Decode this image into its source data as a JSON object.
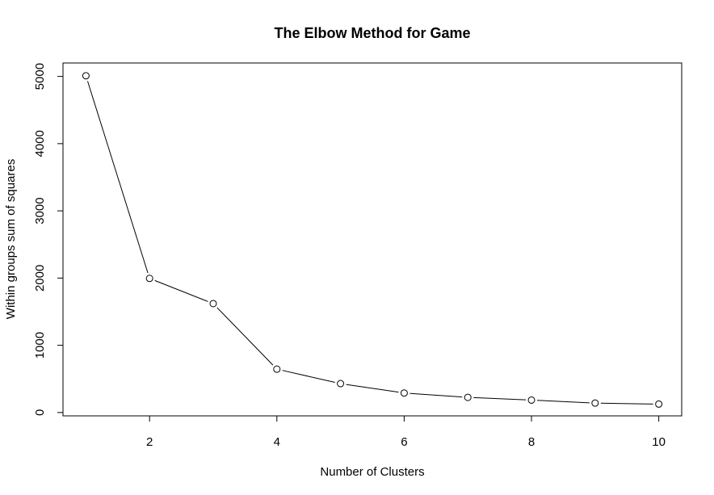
{
  "chart_data": {
    "type": "line",
    "title": "The Elbow Method for Game",
    "xlabel": "Number of Clusters",
    "ylabel": "Within groups sum of squares",
    "x": [
      1,
      2,
      3,
      4,
      5,
      6,
      7,
      8,
      9,
      10
    ],
    "series": [
      {
        "values": [
          5010,
          1995,
          1620,
          645,
          430,
          290,
          225,
          185,
          140,
          125
        ]
      }
    ],
    "xlim": [
      0.64,
      10.36
    ],
    "ylim": [
      -50,
      5200
    ],
    "xticks": [
      2,
      4,
      6,
      8,
      10
    ],
    "yticks": [
      0,
      1000,
      2000,
      3000,
      4000,
      5000
    ],
    "marker": "open-circle",
    "line_color": "#000000",
    "grid": false,
    "legend": "none"
  }
}
